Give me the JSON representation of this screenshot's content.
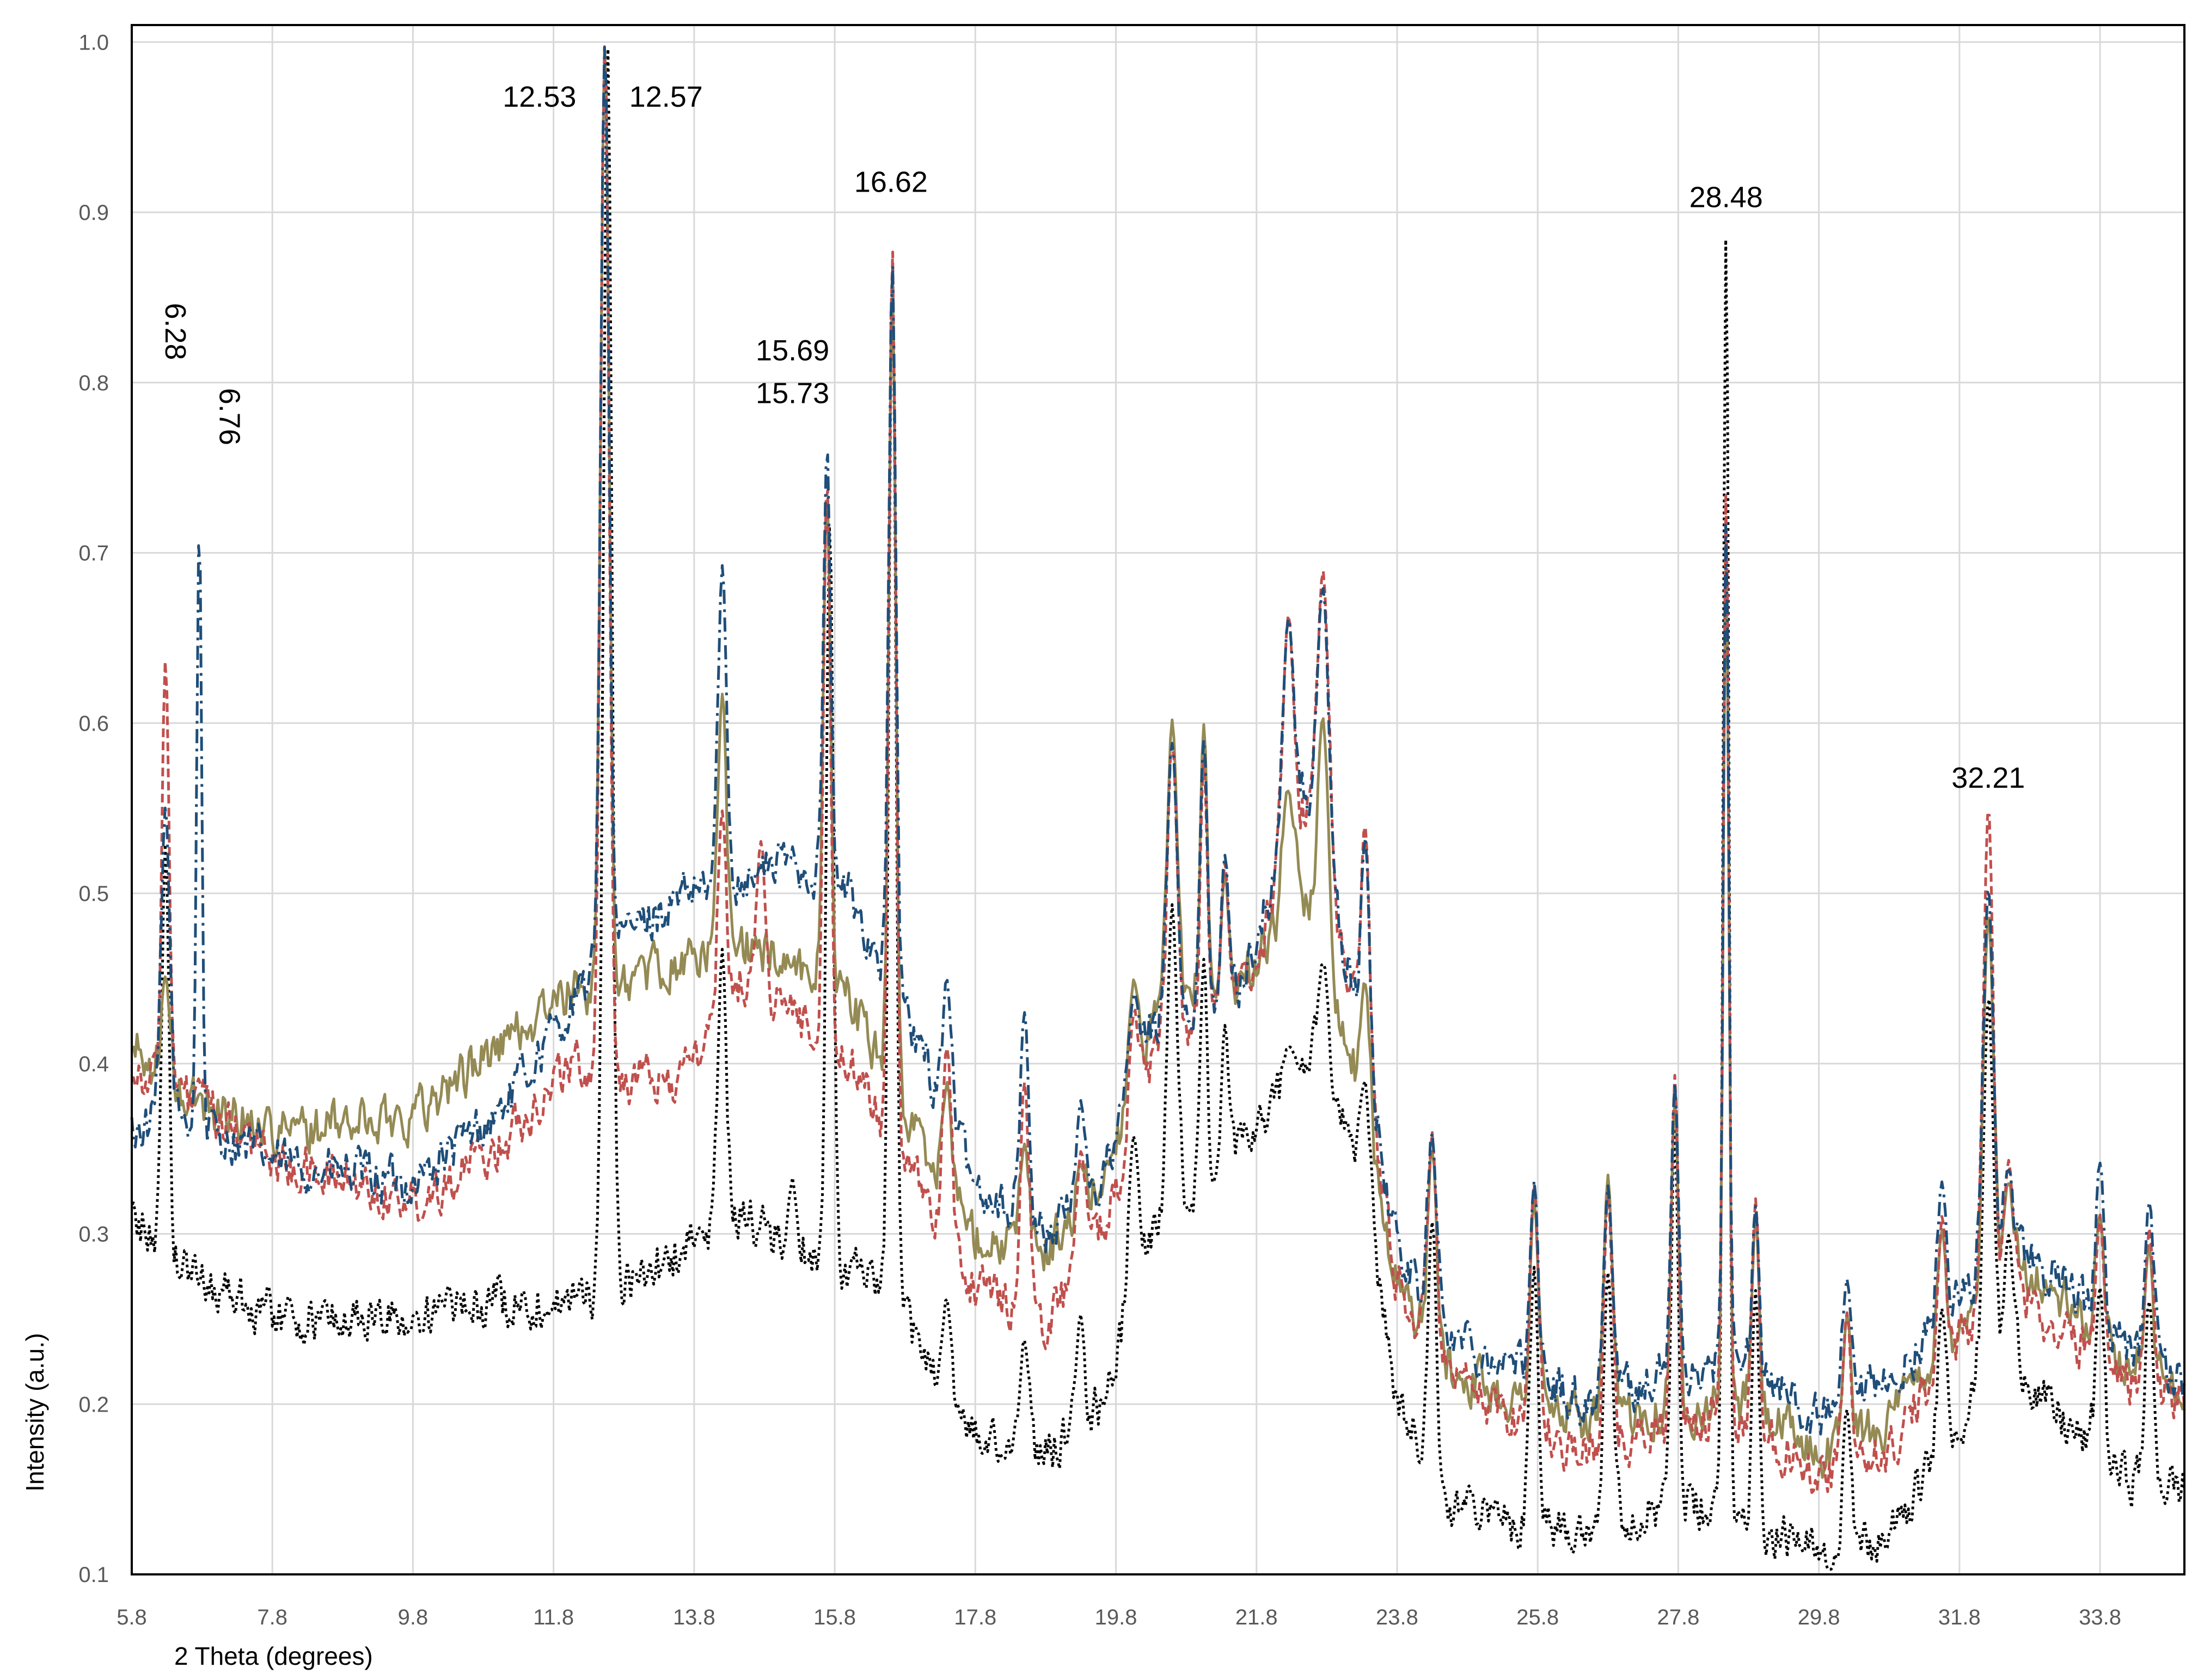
{
  "chart_data": {
    "type": "line",
    "title": "",
    "xlabel": "2 Theta (degrees)",
    "ylabel": "Intensity (a.u.)",
    "xlim": [
      5.8,
      35.0
    ],
    "ylim": [
      0.1,
      1.01
    ],
    "grid": true,
    "legend": "none",
    "x_ticks": [
      "5.8",
      "7.8",
      "9.8",
      "11.8",
      "13.8",
      "15.8",
      "17.8",
      "19.8",
      "21.8",
      "23.8",
      "25.8",
      "27.8",
      "29.8",
      "31.8",
      "33.8"
    ],
    "x_tick_values": [
      5.8,
      7.8,
      9.8,
      11.8,
      13.8,
      15.8,
      17.8,
      19.8,
      21.8,
      23.8,
      25.8,
      27.8,
      29.8,
      31.8,
      33.8
    ],
    "y_ticks": [
      "0.1",
      "0.2",
      "0.3",
      "0.4",
      "0.5",
      "0.6",
      "0.7",
      "0.8",
      "0.9",
      "1.0"
    ],
    "y_tick_values": [
      0.1,
      0.2,
      0.3,
      0.4,
      0.5,
      0.6,
      0.7,
      0.8,
      0.9,
      1.0
    ],
    "annotations": [
      {
        "text": "6.28",
        "x": 6.28,
        "y": 0.83,
        "rotated": true
      },
      {
        "text": "6.76",
        "x": 7.05,
        "y": 0.78,
        "rotated": true
      },
      {
        "text": "12.53",
        "x": 11.6,
        "y": 0.962
      },
      {
        "text": "12.57",
        "x": 13.4,
        "y": 0.962
      },
      {
        "text": "15.69",
        "x": 15.2,
        "y": 0.813
      },
      {
        "text": "15.73",
        "x": 15.2,
        "y": 0.788
      },
      {
        "text": "16.62",
        "x": 16.6,
        "y": 0.912
      },
      {
        "text": "28.48",
        "x": 28.48,
        "y": 0.903
      },
      {
        "text": "32.21",
        "x": 32.21,
        "y": 0.562
      }
    ],
    "series": [
      {
        "color": "#1f4e79",
        "dash": "dash-dot",
        "peaks": [
          [
            6.28,
            0.55,
            0.06
          ],
          [
            6.76,
            0.72,
            0.035
          ],
          [
            12.53,
            1.0,
            0.06
          ],
          [
            14.2,
            0.69,
            0.06
          ],
          [
            15.69,
            0.76,
            0.05
          ],
          [
            16.62,
            0.87,
            0.05
          ],
          [
            17.4,
            0.45,
            0.06
          ],
          [
            18.5,
            0.43,
            0.06
          ],
          [
            19.3,
            0.38,
            0.06
          ],
          [
            20.05,
            0.44,
            0.07
          ],
          [
            20.6,
            0.59,
            0.07
          ],
          [
            21.05,
            0.59,
            0.05
          ],
          [
            21.35,
            0.52,
            0.05
          ],
          [
            22.25,
            0.66,
            0.08
          ],
          [
            22.75,
            0.68,
            0.08
          ],
          [
            23.35,
            0.53,
            0.06
          ],
          [
            24.3,
            0.36,
            0.06
          ],
          [
            25.75,
            0.33,
            0.06
          ],
          [
            26.8,
            0.33,
            0.06
          ],
          [
            27.75,
            0.39,
            0.05
          ],
          [
            28.48,
            0.72,
            0.04
          ],
          [
            28.9,
            0.32,
            0.05
          ],
          [
            30.2,
            0.27,
            0.06
          ],
          [
            31.55,
            0.33,
            0.06
          ],
          [
            32.21,
            0.5,
            0.07
          ],
          [
            32.5,
            0.34,
            0.06
          ],
          [
            33.8,
            0.34,
            0.06
          ],
          [
            34.5,
            0.32,
            0.06
          ]
        ],
        "baseline": [
          [
            5.8,
            0.36
          ],
          [
            6.5,
            0.37
          ],
          [
            8.0,
            0.34
          ],
          [
            9.8,
            0.33
          ],
          [
            11.0,
            0.37
          ],
          [
            12.0,
            0.43
          ],
          [
            12.9,
            0.48
          ],
          [
            13.8,
            0.5
          ],
          [
            15.2,
            0.52
          ],
          [
            16.0,
            0.5
          ],
          [
            16.8,
            0.43
          ],
          [
            17.8,
            0.33
          ],
          [
            18.8,
            0.3
          ],
          [
            19.6,
            0.33
          ],
          [
            20.3,
            0.42
          ],
          [
            21.6,
            0.45
          ],
          [
            22.5,
            0.56
          ],
          [
            23.3,
            0.42
          ],
          [
            23.8,
            0.29
          ],
          [
            24.6,
            0.24
          ],
          [
            25.6,
            0.22
          ],
          [
            26.5,
            0.2
          ],
          [
            27.8,
            0.22
          ],
          [
            28.8,
            0.22
          ],
          [
            29.8,
            0.19
          ],
          [
            30.8,
            0.21
          ],
          [
            31.5,
            0.25
          ],
          [
            32.5,
            0.3
          ],
          [
            33.0,
            0.28
          ],
          [
            34.0,
            0.24
          ],
          [
            35.0,
            0.21
          ]
        ]
      },
      {
        "color": "#c0504d",
        "dash": "dashed",
        "peaks": [
          [
            6.28,
            0.64,
            0.05
          ],
          [
            6.76,
            0.39,
            0.05
          ],
          [
            12.53,
            1.0,
            0.06
          ],
          [
            14.2,
            0.55,
            0.06
          ],
          [
            14.75,
            0.53,
            0.06
          ],
          [
            15.69,
            0.74,
            0.05
          ],
          [
            16.62,
            0.88,
            0.05
          ],
          [
            17.4,
            0.41,
            0.06
          ],
          [
            18.5,
            0.39,
            0.06
          ],
          [
            19.3,
            0.35,
            0.06
          ],
          [
            20.05,
            0.43,
            0.07
          ],
          [
            20.6,
            0.59,
            0.07
          ],
          [
            21.05,
            0.58,
            0.05
          ],
          [
            21.35,
            0.52,
            0.05
          ],
          [
            22.25,
            0.66,
            0.08
          ],
          [
            22.75,
            0.69,
            0.08
          ],
          [
            23.35,
            0.54,
            0.06
          ],
          [
            24.3,
            0.36,
            0.06
          ],
          [
            25.75,
            0.33,
            0.06
          ],
          [
            26.8,
            0.32,
            0.06
          ],
          [
            27.75,
            0.39,
            0.05
          ],
          [
            28.48,
            0.74,
            0.04
          ],
          [
            28.9,
            0.32,
            0.05
          ],
          [
            30.2,
            0.25,
            0.06
          ],
          [
            31.55,
            0.31,
            0.06
          ],
          [
            32.21,
            0.55,
            0.07
          ],
          [
            32.5,
            0.34,
            0.06
          ],
          [
            33.8,
            0.31,
            0.06
          ],
          [
            34.5,
            0.3,
            0.06
          ]
        ],
        "baseline": [
          [
            5.8,
            0.4
          ],
          [
            6.5,
            0.38
          ],
          [
            8.0,
            0.34
          ],
          [
            9.8,
            0.32
          ],
          [
            11.0,
            0.35
          ],
          [
            12.0,
            0.4
          ],
          [
            12.9,
            0.39
          ],
          [
            13.6,
            0.39
          ],
          [
            14.5,
            0.45
          ],
          [
            15.2,
            0.43
          ],
          [
            16.0,
            0.4
          ],
          [
            16.8,
            0.34
          ],
          [
            17.8,
            0.27
          ],
          [
            18.8,
            0.25
          ],
          [
            19.6,
            0.3
          ],
          [
            20.3,
            0.4
          ],
          [
            21.6,
            0.44
          ],
          [
            22.5,
            0.55
          ],
          [
            23.3,
            0.42
          ],
          [
            23.8,
            0.27
          ],
          [
            24.6,
            0.21
          ],
          [
            25.6,
            0.19
          ],
          [
            26.5,
            0.17
          ],
          [
            27.8,
            0.19
          ],
          [
            28.8,
            0.19
          ],
          [
            29.8,
            0.16
          ],
          [
            30.8,
            0.17
          ],
          [
            31.5,
            0.22
          ],
          [
            32.5,
            0.28
          ],
          [
            33.0,
            0.25
          ],
          [
            34.0,
            0.22
          ],
          [
            35.0,
            0.2
          ]
        ]
      },
      {
        "color": "#948a54",
        "dash": "solid",
        "peaks": [
          [
            6.28,
            0.45,
            0.06
          ],
          [
            12.53,
            1.0,
            0.06
          ],
          [
            14.2,
            0.62,
            0.06
          ],
          [
            15.69,
            0.74,
            0.05
          ],
          [
            16.62,
            0.86,
            0.05
          ],
          [
            17.4,
            0.39,
            0.06
          ],
          [
            18.5,
            0.35,
            0.06
          ],
          [
            19.3,
            0.34,
            0.06
          ],
          [
            20.05,
            0.45,
            0.07
          ],
          [
            20.6,
            0.6,
            0.07
          ],
          [
            21.05,
            0.6,
            0.05
          ],
          [
            21.35,
            0.51,
            0.05
          ],
          [
            22.25,
            0.56,
            0.08
          ],
          [
            22.75,
            0.6,
            0.08
          ],
          [
            23.35,
            0.45,
            0.06
          ],
          [
            24.3,
            0.35,
            0.06
          ],
          [
            25.75,
            0.32,
            0.06
          ],
          [
            26.8,
            0.33,
            0.06
          ],
          [
            27.75,
            0.38,
            0.05
          ],
          [
            28.48,
            0.7,
            0.04
          ],
          [
            28.9,
            0.31,
            0.05
          ],
          [
            30.2,
            0.25,
            0.06
          ],
          [
            31.55,
            0.3,
            0.06
          ],
          [
            32.21,
            0.49,
            0.07
          ],
          [
            32.5,
            0.33,
            0.06
          ],
          [
            33.8,
            0.31,
            0.06
          ],
          [
            34.5,
            0.29,
            0.06
          ]
        ],
        "baseline": [
          [
            5.8,
            0.41
          ],
          [
            6.5,
            0.38
          ],
          [
            8.0,
            0.36
          ],
          [
            9.8,
            0.37
          ],
          [
            11.0,
            0.41
          ],
          [
            12.0,
            0.44
          ],
          [
            12.9,
            0.45
          ],
          [
            13.6,
            0.46
          ],
          [
            14.5,
            0.47
          ],
          [
            15.2,
            0.46
          ],
          [
            16.0,
            0.44
          ],
          [
            16.8,
            0.37
          ],
          [
            17.8,
            0.3
          ],
          [
            18.8,
            0.29
          ],
          [
            19.6,
            0.33
          ],
          [
            20.3,
            0.42
          ],
          [
            21.6,
            0.45
          ],
          [
            22.5,
            0.5
          ],
          [
            23.3,
            0.38
          ],
          [
            23.8,
            0.27
          ],
          [
            24.6,
            0.22
          ],
          [
            25.6,
            0.2
          ],
          [
            26.5,
            0.19
          ],
          [
            27.8,
            0.2
          ],
          [
            28.8,
            0.2
          ],
          [
            29.8,
            0.17
          ],
          [
            30.8,
            0.19
          ],
          [
            31.5,
            0.23
          ],
          [
            32.5,
            0.29
          ],
          [
            33.0,
            0.27
          ],
          [
            34.0,
            0.23
          ],
          [
            35.0,
            0.21
          ]
        ]
      },
      {
        "color": "#000000",
        "dash": "dotted",
        "peaks": [
          [
            6.28,
            0.53,
            0.05
          ],
          [
            12.57,
            1.0,
            0.06
          ],
          [
            14.2,
            0.47,
            0.06
          ],
          [
            15.2,
            0.33,
            0.06
          ],
          [
            15.73,
            0.72,
            0.05
          ],
          [
            16.62,
            0.87,
            0.05
          ],
          [
            17.4,
            0.26,
            0.06
          ],
          [
            18.5,
            0.24,
            0.06
          ],
          [
            19.3,
            0.25,
            0.06
          ],
          [
            20.05,
            0.36,
            0.07
          ],
          [
            20.6,
            0.49,
            0.07
          ],
          [
            21.05,
            0.46,
            0.05
          ],
          [
            21.35,
            0.42,
            0.05
          ],
          [
            22.25,
            0.41,
            0.08
          ],
          [
            22.75,
            0.46,
            0.08
          ],
          [
            23.35,
            0.39,
            0.06
          ],
          [
            24.3,
            0.31,
            0.06
          ],
          [
            25.75,
            0.28,
            0.06
          ],
          [
            26.8,
            0.28,
            0.06
          ],
          [
            27.75,
            0.36,
            0.05
          ],
          [
            28.48,
            0.89,
            0.04
          ],
          [
            28.9,
            0.27,
            0.05
          ],
          [
            30.2,
            0.2,
            0.06
          ],
          [
            31.55,
            0.26,
            0.06
          ],
          [
            32.21,
            0.44,
            0.07
          ],
          [
            32.5,
            0.3,
            0.06
          ],
          [
            33.8,
            0.27,
            0.06
          ],
          [
            34.5,
            0.26,
            0.06
          ]
        ],
        "baseline": [
          [
            5.8,
            0.31
          ],
          [
            6.5,
            0.28
          ],
          [
            8.0,
            0.25
          ],
          [
            9.8,
            0.25
          ],
          [
            11.0,
            0.26
          ],
          [
            12.0,
            0.26
          ],
          [
            12.9,
            0.27
          ],
          [
            13.6,
            0.29
          ],
          [
            14.5,
            0.31
          ],
          [
            15.2,
            0.29
          ],
          [
            16.0,
            0.28
          ],
          [
            16.8,
            0.25
          ],
          [
            17.8,
            0.18
          ],
          [
            18.8,
            0.17
          ],
          [
            19.6,
            0.2
          ],
          [
            20.3,
            0.3
          ],
          [
            21.6,
            0.35
          ],
          [
            22.5,
            0.4
          ],
          [
            23.3,
            0.34
          ],
          [
            23.8,
            0.2
          ],
          [
            24.6,
            0.14
          ],
          [
            25.6,
            0.13
          ],
          [
            26.5,
            0.13
          ],
          [
            27.8,
            0.14
          ],
          [
            28.8,
            0.13
          ],
          [
            29.8,
            0.11
          ],
          [
            30.8,
            0.12
          ],
          [
            31.5,
            0.17
          ],
          [
            32.5,
            0.24
          ],
          [
            33.0,
            0.2
          ],
          [
            34.0,
            0.16
          ],
          [
            35.0,
            0.15
          ]
        ]
      }
    ]
  }
}
